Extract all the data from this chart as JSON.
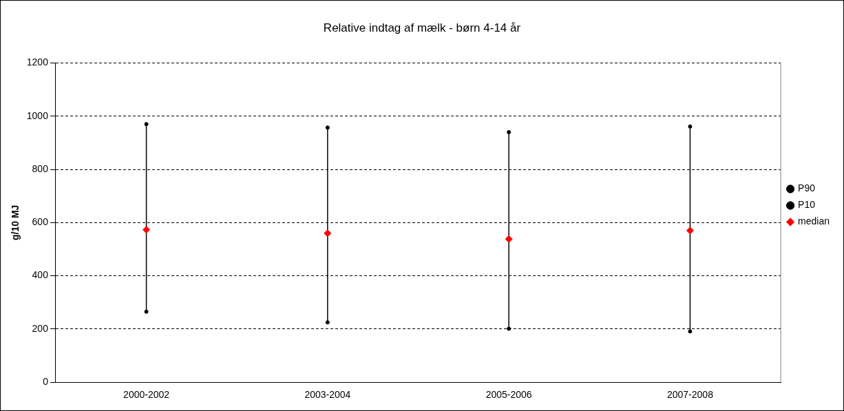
{
  "chart_data": {
    "type": "scatter",
    "title": "Relative indtag af mælk - børn 4-14 år",
    "ylabel": "g/10 MJ",
    "categories": [
      "2000-2002",
      "2003-2004",
      "2005-2006",
      "2007-2008"
    ],
    "series": [
      {
        "name": "P90",
        "color": "#000000",
        "values": [
          970,
          957,
          940,
          961
        ]
      },
      {
        "name": "P10",
        "color": "#000000",
        "values": [
          265,
          225,
          201,
          191
        ]
      },
      {
        "name": "median",
        "color": "#ff0000",
        "marker": "diamond",
        "values": [
          573,
          560,
          538,
          570
        ]
      }
    ],
    "ylim": [
      0,
      1200
    ],
    "yticks": [
      0,
      200,
      400,
      600,
      800,
      1000,
      1200
    ],
    "grid": "y",
    "legend": "right"
  }
}
